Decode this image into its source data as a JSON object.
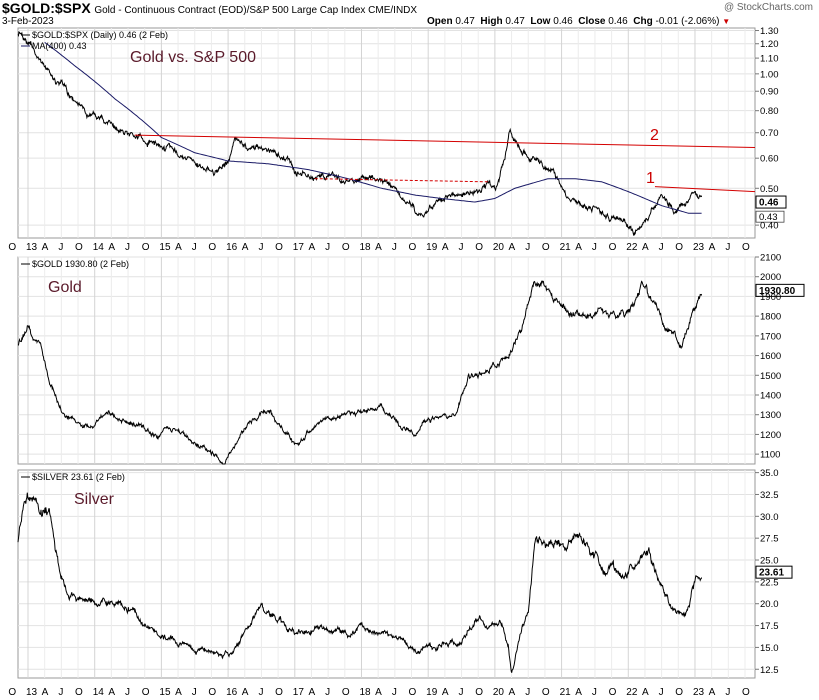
{
  "header": {
    "symbol": "$GOLD:$SPX",
    "description": "Gold - Continuous Contract (EOD)/S&P 500 Large Cap Index CME/INDX",
    "date": "3-Feb-2023",
    "open_label": "Open",
    "open_value": "0.47",
    "high_label": "High",
    "high_value": "0.47",
    "low_label": "Low",
    "low_value": "0.46",
    "close_label": "Close",
    "close_value": "0.46",
    "chg_label": "Chg",
    "chg_value": "-0.01 (-2.06%)",
    "brand": "@ StockCharts.com"
  },
  "chart_data": [
    {
      "type": "line",
      "title": "Gold vs. S&P 500",
      "legend": [
        "$GOLD:$SPX (Daily) 0.46 (2 Feb)",
        "MA(400) 0.43"
      ],
      "scale": "log",
      "ylim": [
        0.37,
        1.32
      ],
      "yticks": [
        1.3,
        1.2,
        1.1,
        1.0,
        0.9,
        0.8,
        0.7,
        0.6,
        0.5,
        0.4
      ],
      "ytick_labels": [
        "1.30",
        "1.20",
        "1.10",
        "1.00",
        "0.90",
        "0.80",
        "0.70",
        "0.60",
        "0.50",
        "0.40"
      ],
      "last_value": "0.46",
      "ma_value": "0.43",
      "annotations": [
        {
          "text": "1",
          "color": "#cc0000"
        },
        {
          "text": "2",
          "color": "#cc0000"
        }
      ],
      "x": [
        2012.85,
        2013.0,
        2013.2,
        2013.45,
        2013.7,
        2014.0,
        2014.3,
        2014.6,
        2014.9,
        2015.2,
        2015.5,
        2015.8,
        2016.0,
        2016.1,
        2016.3,
        2016.6,
        2016.9,
        2017.0,
        2017.3,
        2017.7,
        2018.0,
        2018.3,
        2018.6,
        2018.8,
        2018.95,
        2019.2,
        2019.4,
        2019.65,
        2019.9,
        2020.0,
        2020.15,
        2020.22,
        2020.35,
        2020.6,
        2020.9,
        2021.1,
        2021.3,
        2021.6,
        2021.9,
        2022.1,
        2022.3,
        2022.5,
        2022.7,
        2022.85,
        2023.0,
        2023.1
      ],
      "values": [
        1.28,
        1.22,
        1.08,
        0.95,
        0.85,
        0.76,
        0.72,
        0.7,
        0.66,
        0.62,
        0.58,
        0.55,
        0.6,
        0.67,
        0.64,
        0.63,
        0.59,
        0.55,
        0.54,
        0.52,
        0.53,
        0.51,
        0.48,
        0.44,
        0.43,
        0.47,
        0.48,
        0.49,
        0.52,
        0.48,
        0.59,
        0.7,
        0.64,
        0.6,
        0.55,
        0.48,
        0.45,
        0.43,
        0.41,
        0.38,
        0.42,
        0.48,
        0.44,
        0.46,
        0.48,
        0.46
      ],
      "ma_x": [
        2013.25,
        2013.7,
        2014.3,
        2015.0,
        2015.5,
        2016.0,
        2016.6,
        2017.2,
        2017.8,
        2018.3,
        2018.8,
        2019.2,
        2019.7,
        2020.0,
        2020.3,
        2020.8,
        2021.2,
        2021.6,
        2022.0,
        2022.5,
        2022.9,
        2023.1
      ],
      "ma_values": [
        1.21,
        1.05,
        0.86,
        0.68,
        0.62,
        0.59,
        0.58,
        0.56,
        0.53,
        0.5,
        0.48,
        0.47,
        0.46,
        0.47,
        0.5,
        0.53,
        0.53,
        0.52,
        0.49,
        0.45,
        0.43,
        0.43
      ],
      "resistance_line_2": {
        "x": [
          2014.6,
          2023.9
        ],
        "values": [
          0.69,
          0.64
        ]
      },
      "resistance_line_1": {
        "x": [
          2022.4,
          2023.9
        ],
        "values": [
          0.505,
          0.49
        ]
      },
      "dashed_line": {
        "x": [
          2017.3,
          2019.9
        ],
        "values": [
          0.53,
          0.52
        ]
      }
    },
    {
      "type": "line",
      "title": "Gold",
      "legend": [
        "$GOLD 1930.80 (2 Feb)"
      ],
      "ylim": [
        1050,
        2100
      ],
      "yticks": [
        2100,
        2000,
        1900,
        1800,
        1700,
        1600,
        1500,
        1400,
        1300,
        1200,
        1100
      ],
      "ytick_labels": [
        "2100",
        "2000",
        "1900",
        "1800",
        "1700",
        "1600",
        "1500",
        "1400",
        "1300",
        "1200",
        "1100"
      ],
      "last_value": "1930.80",
      "x": [
        2012.85,
        2013.0,
        2013.2,
        2013.4,
        2013.55,
        2013.8,
        2014.0,
        2014.2,
        2014.5,
        2014.9,
        2015.2,
        2015.5,
        2015.8,
        2015.95,
        2016.3,
        2016.6,
        2016.9,
        2017.0,
        2017.3,
        2017.7,
        2017.95,
        2018.3,
        2018.6,
        2018.8,
        2019.0,
        2019.4,
        2019.6,
        2019.9,
        2020.1,
        2020.2,
        2020.4,
        2020.6,
        2020.9,
        2021.1,
        2021.3,
        2021.6,
        2021.9,
        2022.1,
        2022.2,
        2022.4,
        2022.65,
        2022.8,
        2022.95,
        2023.1
      ],
      "values": [
        1660,
        1740,
        1650,
        1400,
        1300,
        1250,
        1230,
        1320,
        1270,
        1200,
        1230,
        1150,
        1100,
        1070,
        1250,
        1330,
        1180,
        1150,
        1250,
        1280,
        1320,
        1340,
        1240,
        1200,
        1290,
        1300,
        1500,
        1520,
        1580,
        1600,
        1740,
        1980,
        1880,
        1830,
        1780,
        1800,
        1800,
        1850,
        1950,
        1840,
        1700,
        1650,
        1810,
        1930
      ]
    },
    {
      "type": "line",
      "title": "Silver",
      "legend": [
        "$SILVER 23.61 (2 Feb)"
      ],
      "ylim": [
        11.5,
        35.3
      ],
      "yticks": [
        35.0,
        32.5,
        30.0,
        27.5,
        25.0,
        22.5,
        20.0,
        17.5,
        15.0,
        12.5
      ],
      "ytick_labels": [
        "35.0",
        "32.5",
        "30.0",
        "27.5",
        "25.0",
        "22.5",
        "20.0",
        "17.5",
        "15.0",
        "12.5"
      ],
      "last_value": "23.61",
      "x": [
        2012.85,
        2012.95,
        2013.05,
        2013.2,
        2013.3,
        2013.45,
        2013.6,
        2013.9,
        2014.2,
        2014.5,
        2014.9,
        2015.2,
        2015.5,
        2015.9,
        2016.1,
        2016.5,
        2016.9,
        2017.0,
        2017.4,
        2017.8,
        2018.0,
        2018.5,
        2018.8,
        2019.0,
        2019.5,
        2019.7,
        2019.95,
        2020.1,
        2020.2,
        2020.25,
        2020.4,
        2020.5,
        2020.6,
        2020.7,
        2021.0,
        2021.3,
        2021.6,
        2021.9,
        2022.1,
        2022.3,
        2022.5,
        2022.7,
        2022.85,
        2023.0,
        2023.1
      ],
      "values": [
        27.5,
        32.0,
        33.5,
        30.0,
        31.0,
        24.5,
        21.0,
        20.5,
        20.0,
        19.5,
        16.5,
        16.0,
        15.0,
        14.0,
        14.5,
        19.5,
        17.0,
        16.5,
        17.0,
        16.5,
        17.0,
        16.5,
        14.5,
        15.0,
        15.5,
        18.5,
        17.5,
        17.5,
        15.0,
        12.0,
        17.0,
        19.0,
        28.0,
        27.0,
        27.0,
        28.0,
        24.0,
        23.0,
        24.0,
        26.0,
        22.0,
        19.0,
        18.5,
        22.5,
        23.61
      ]
    }
  ],
  "x_axis": {
    "labels": [
      "O",
      "13",
      "A",
      "J",
      "O",
      "14",
      "A",
      "J",
      "O",
      "15",
      "A",
      "J",
      "O",
      "16",
      "A",
      "J",
      "O",
      "17",
      "A",
      "J",
      "O",
      "18",
      "A",
      "J",
      "O",
      "19",
      "A",
      "J",
      "O",
      "20",
      "A",
      "J",
      "O",
      "21",
      "A",
      "J",
      "O",
      "22",
      "A",
      "J",
      "O",
      "23",
      "A",
      "J",
      "O"
    ],
    "major_labels": [
      "13",
      "14",
      "15",
      "16",
      "17",
      "18",
      "19",
      "20",
      "21",
      "22",
      "23"
    ]
  },
  "colors": {
    "price": "#000000",
    "ma": "#1a1a66",
    "resistance": "#d40000",
    "annotation": "#cc0000",
    "title": "#5a1a2a",
    "grid": "#e2e2e2",
    "frame": "#999999"
  }
}
